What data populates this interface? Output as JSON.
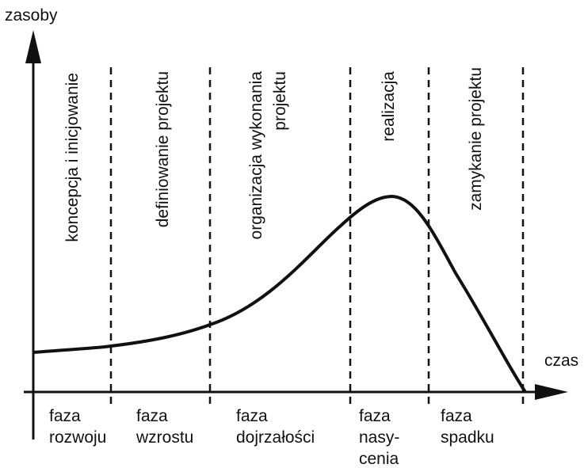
{
  "axes": {
    "y_label": "zasoby",
    "x_label": "czas"
  },
  "phases": [
    {
      "lines": [
        "koncepcja i inicjowanie"
      ]
    },
    {
      "lines": [
        "definiowanie projektu"
      ]
    },
    {
      "lines": [
        "organizacja wykonania",
        "projektu"
      ]
    },
    {
      "lines": [
        "realizacja"
      ]
    },
    {
      "lines": [
        "zamykanie projektu"
      ]
    }
  ],
  "stages": [
    {
      "lines": [
        "faza",
        "rozwoju"
      ]
    },
    {
      "lines": [
        "faza",
        "wzrostu"
      ]
    },
    {
      "lines": [
        "faza",
        "dojrzałości"
      ]
    },
    {
      "lines": [
        "faza",
        "nasy-",
        "cenia"
      ]
    },
    {
      "lines": [
        "faza",
        "spadku"
      ]
    }
  ]
}
